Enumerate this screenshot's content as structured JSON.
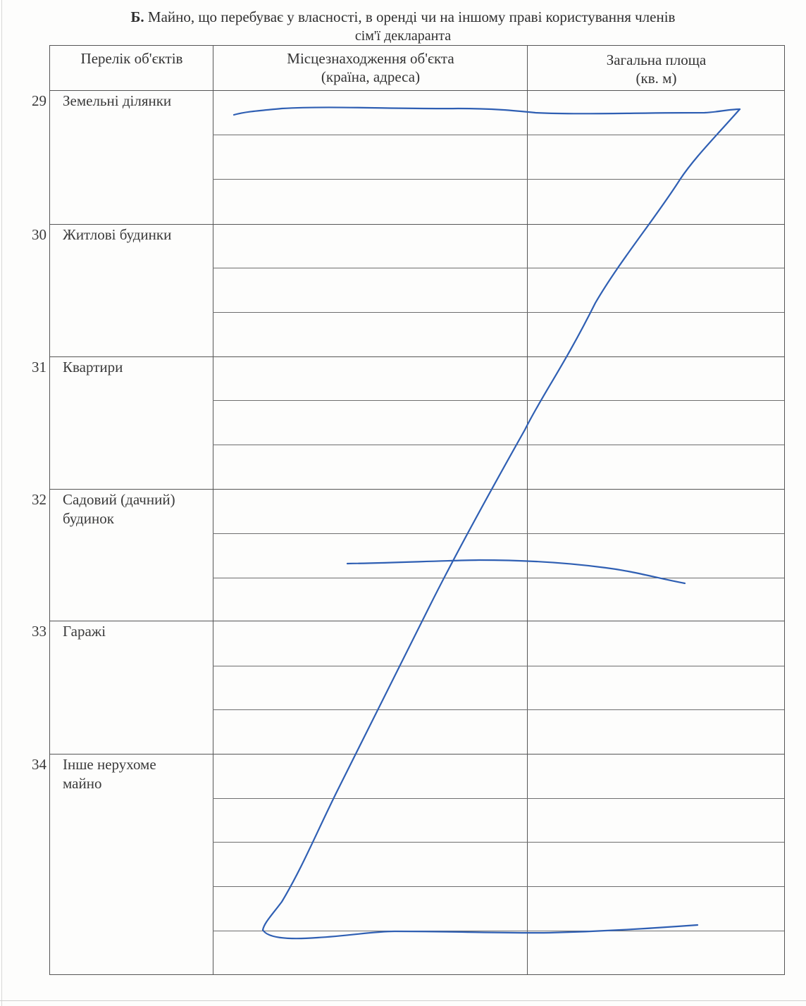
{
  "section": {
    "letter": "Б.",
    "title_line1": "Майно, що перебуває у власності, в оренді чи на іншому праві користування членів",
    "title_line2": "сім'ї декларанта"
  },
  "table": {
    "headers": {
      "objects": "Перелік об'єктів",
      "location_line1": "Місцезнаходження об'єкта",
      "location_line2": "(країна, адреса)",
      "area_line1": "Загальна площа",
      "area_line2": "(кв. м)"
    },
    "rows": [
      {
        "num": "29",
        "label_line1": "Земельні ділянки",
        "label_line2": ""
      },
      {
        "num": "30",
        "label_line1": "Житлові будинки",
        "label_line2": ""
      },
      {
        "num": "31",
        "label_line1": "Квартири",
        "label_line2": ""
      },
      {
        "num": "32",
        "label_line1": "Садовий (дачний)",
        "label_line2": "будинок"
      },
      {
        "num": "33",
        "label_line1": "Гаражі",
        "label_line2": ""
      },
      {
        "num": "34",
        "label_line1": "Інше нерухоме",
        "label_line2": "майно"
      }
    ]
  },
  "strike_color": "#2f5fb3"
}
